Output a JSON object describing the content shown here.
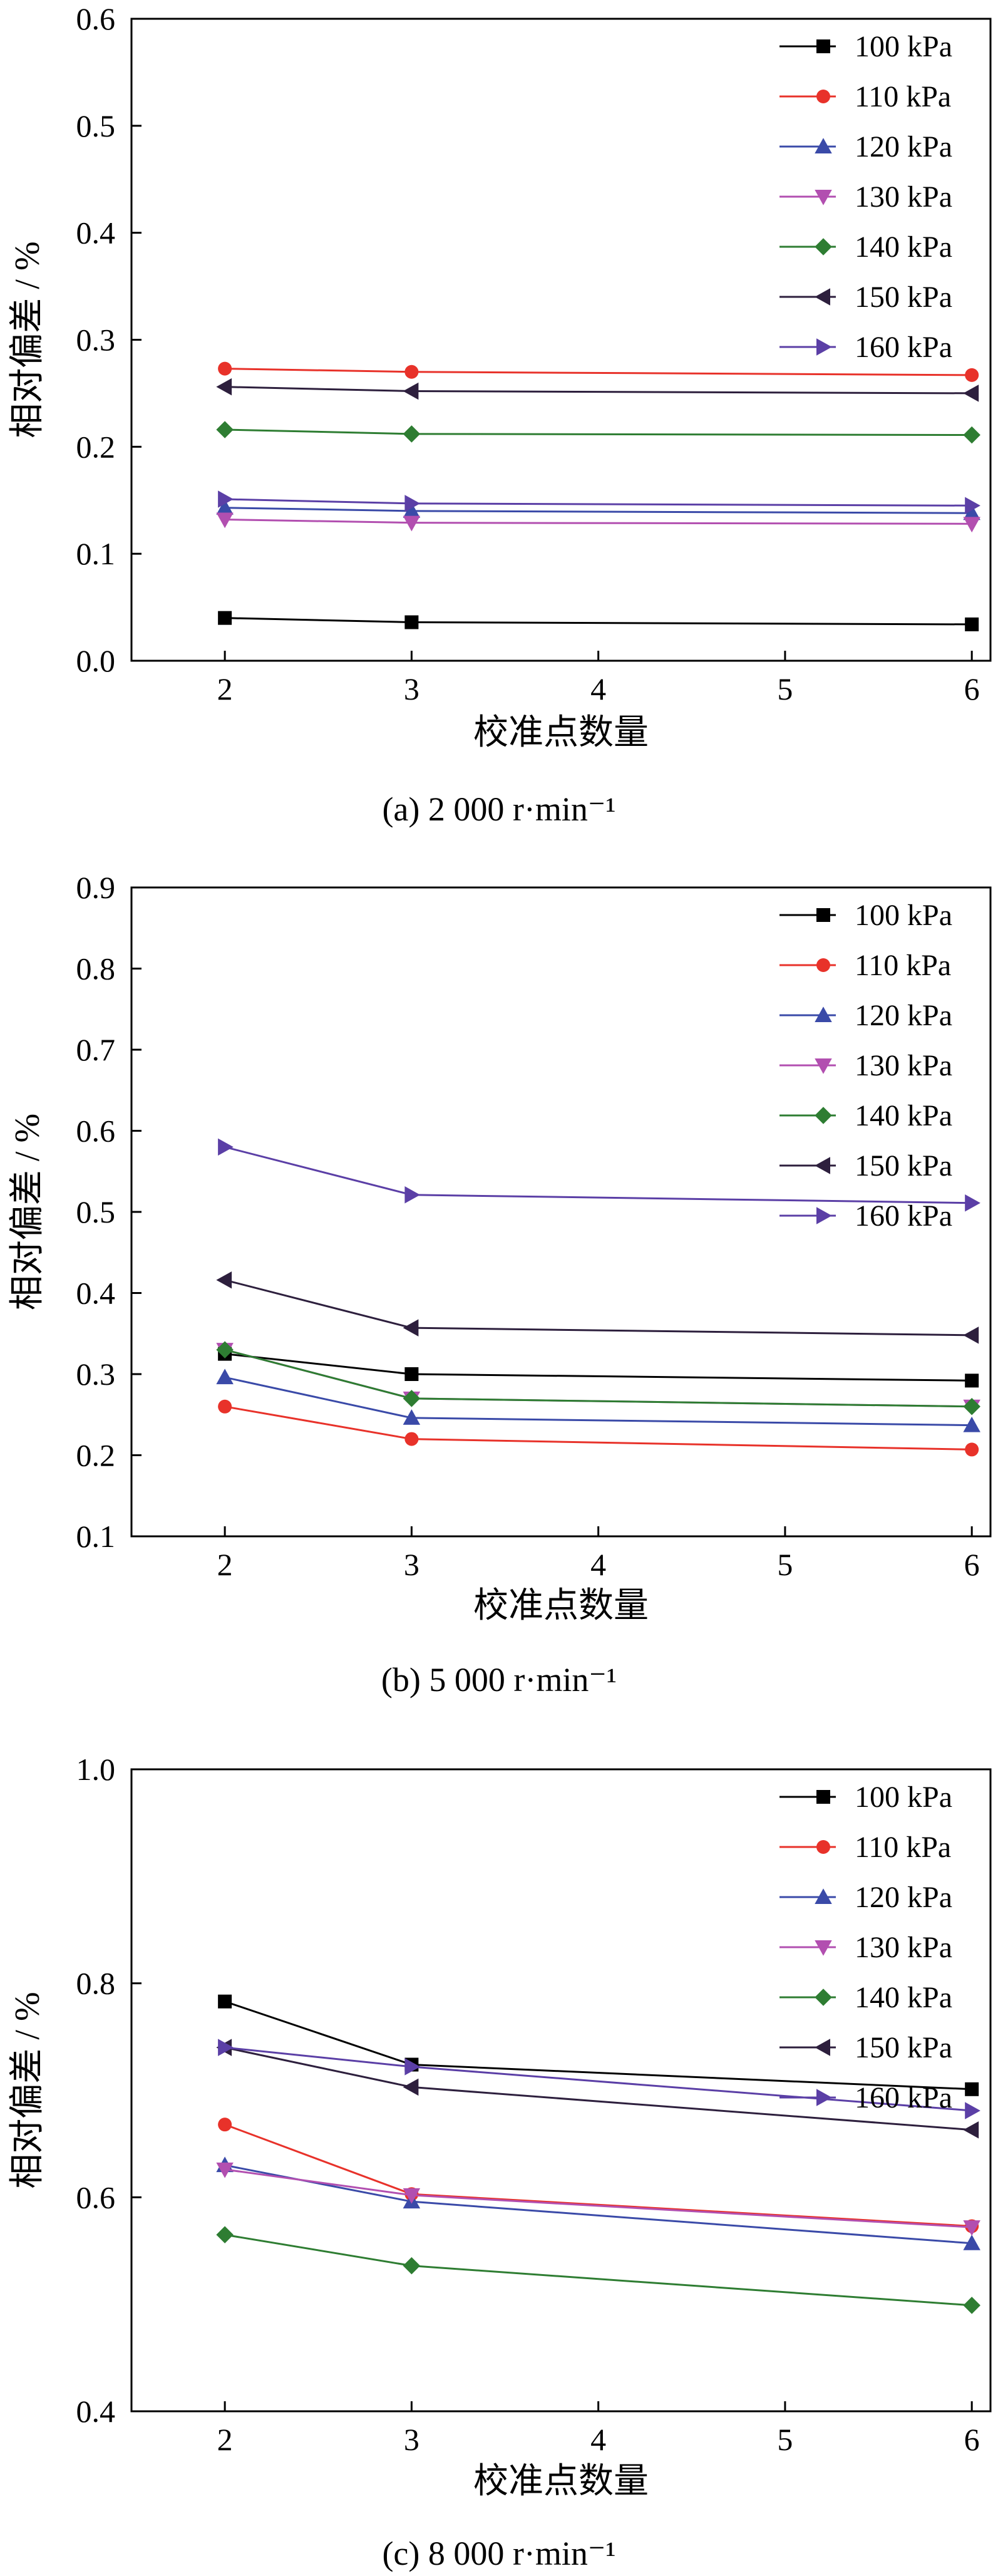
{
  "chart_data": [
    {
      "type": "line",
      "caption": "(a) 2 000 r·min⁻¹",
      "xlabel": "校准点数量",
      "ylabel": "相对偏差 / %",
      "xlim": [
        1.5,
        6.1
      ],
      "ylim": [
        0.0,
        0.6
      ],
      "xticks": [
        2,
        3,
        4,
        5,
        6
      ],
      "yticks": [
        0.0,
        0.1,
        0.2,
        0.3,
        0.4,
        0.5,
        0.6
      ],
      "ytick_labels": [
        "0.0",
        "0.1",
        "0.2",
        "0.3",
        "0.4",
        "0.5",
        "0.6"
      ],
      "x": [
        2,
        3,
        6
      ],
      "legend_position": "top-right",
      "series": [
        {
          "name": "100 kPa",
          "color": "#000000",
          "marker": "square",
          "values": [
            0.04,
            0.036,
            0.034
          ]
        },
        {
          "name": "110 kPa",
          "color": "#e8322a",
          "marker": "circle",
          "values": [
            0.273,
            0.27,
            0.267
          ]
        },
        {
          "name": "120 kPa",
          "color": "#3a4aa8",
          "marker": "triangle-up",
          "values": [
            0.143,
            0.14,
            0.138
          ]
        },
        {
          "name": "130 kPa",
          "color": "#b24fb0",
          "marker": "triangle-down",
          "values": [
            0.132,
            0.129,
            0.128
          ]
        },
        {
          "name": "140 kPa",
          "color": "#2e7d32",
          "marker": "diamond",
          "values": [
            0.216,
            0.212,
            0.211
          ]
        },
        {
          "name": "150 kPa",
          "color": "#2d1f3d",
          "marker": "triangle-left",
          "values": [
            0.256,
            0.252,
            0.25
          ]
        },
        {
          "name": "160 kPa",
          "color": "#5b3fa6",
          "marker": "triangle-right",
          "values": [
            0.151,
            0.147,
            0.145
          ]
        }
      ]
    },
    {
      "type": "line",
      "caption": "(b) 5 000 r·min⁻¹",
      "xlabel": "校准点数量",
      "ylabel": "相对偏差 / %",
      "xlim": [
        1.5,
        6.1
      ],
      "ylim": [
        0.1,
        0.9
      ],
      "xticks": [
        2,
        3,
        4,
        5,
        6
      ],
      "yticks": [
        0.1,
        0.2,
        0.3,
        0.4,
        0.5,
        0.6,
        0.7,
        0.8,
        0.9
      ],
      "ytick_labels": [
        "0.1",
        "0.2",
        "0.3",
        "0.4",
        "0.5",
        "0.6",
        "0.7",
        "0.8",
        "0.9"
      ],
      "x": [
        2,
        3,
        6
      ],
      "legend_position": "top-right",
      "series": [
        {
          "name": "100 kPa",
          "color": "#000000",
          "marker": "square",
          "values": [
            0.325,
            0.3,
            0.292
          ]
        },
        {
          "name": "110 kPa",
          "color": "#e8322a",
          "marker": "circle",
          "values": [
            0.26,
            0.22,
            0.207
          ]
        },
        {
          "name": "120 kPa",
          "color": "#3a4aa8",
          "marker": "triangle-up",
          "values": [
            0.296,
            0.246,
            0.237
          ]
        },
        {
          "name": "130 kPa",
          "color": "#b24fb0",
          "marker": "triangle-down",
          "values": [
            0.33,
            0.27,
            0.26
          ]
        },
        {
          "name": "140 kPa",
          "color": "#2e7d32",
          "marker": "diamond",
          "values": [
            0.33,
            0.27,
            0.26
          ]
        },
        {
          "name": "150 kPa",
          "color": "#2d1f3d",
          "marker": "triangle-left",
          "values": [
            0.416,
            0.357,
            0.348
          ]
        },
        {
          "name": "160 kPa",
          "color": "#5b3fa6",
          "marker": "triangle-right",
          "values": [
            0.58,
            0.521,
            0.511
          ]
        }
      ]
    },
    {
      "type": "line",
      "caption": "(c) 8 000 r·min⁻¹",
      "xlabel": "校准点数量",
      "ylabel": "相对偏差 / %",
      "xlim": [
        1.5,
        6.1
      ],
      "ylim": [
        0.4,
        1.0
      ],
      "xticks": [
        2,
        3,
        4,
        5,
        6
      ],
      "yticks": [
        0.4,
        0.6,
        0.8,
        1.0
      ],
      "ytick_labels": [
        "0.4",
        "0.6",
        "0.8",
        "1.0"
      ],
      "x": [
        2,
        3,
        6
      ],
      "legend_position": "top-right",
      "series": [
        {
          "name": "100 kPa",
          "color": "#000000",
          "marker": "square",
          "values": [
            0.783,
            0.724,
            0.701
          ]
        },
        {
          "name": "110 kPa",
          "color": "#e8322a",
          "marker": "circle",
          "values": [
            0.668,
            0.603,
            0.573
          ]
        },
        {
          "name": "120 kPa",
          "color": "#3a4aa8",
          "marker": "triangle-up",
          "values": [
            0.63,
            0.596,
            0.557
          ]
        },
        {
          "name": "130 kPa",
          "color": "#b24fb0",
          "marker": "triangle-down",
          "values": [
            0.626,
            0.602,
            0.572
          ]
        },
        {
          "name": "140 kPa",
          "color": "#2e7d32",
          "marker": "diamond",
          "values": [
            0.565,
            0.536,
            0.499
          ]
        },
        {
          "name": "150 kPa",
          "color": "#2d1f3d",
          "marker": "triangle-left",
          "values": [
            0.74,
            0.703,
            0.663
          ]
        },
        {
          "name": "160 kPa",
          "color": "#5b3fa6",
          "marker": "triangle-right",
          "values": [
            0.74,
            0.722,
            0.681
          ]
        }
      ]
    }
  ]
}
